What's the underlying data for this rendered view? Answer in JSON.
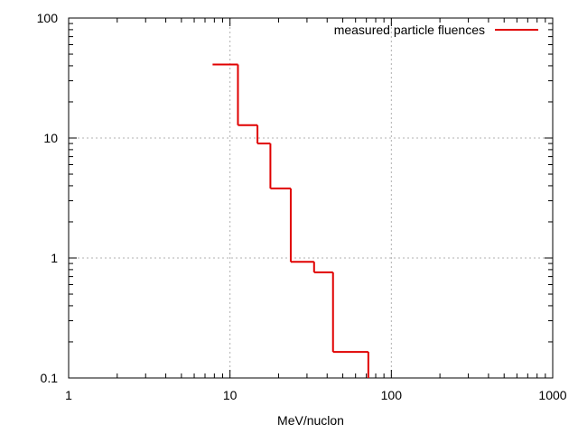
{
  "chart_data": {
    "type": "line",
    "step": true,
    "xlabel": "MeV/nuclon",
    "ylabel": "",
    "x_scale": "log",
    "y_scale": "log",
    "xlim": [
      1,
      1000
    ],
    "ylim": [
      0.1,
      100
    ],
    "x_ticks": [
      "1",
      "10",
      "100",
      "1000"
    ],
    "y_ticks": [
      "0.1",
      "1",
      "10",
      "100"
    ],
    "grid": true,
    "legend_position": "top-right",
    "series": [
      {
        "name": "measured particle fluences",
        "color": "#e00000",
        "steps": [
          {
            "x_start": 7.8,
            "x_end": 11.2,
            "y": 41
          },
          {
            "x_start": 11.2,
            "x_end": 14.8,
            "y": 12.8
          },
          {
            "x_start": 14.8,
            "x_end": 17.8,
            "y": 9.0
          },
          {
            "x_start": 17.8,
            "x_end": 23.8,
            "y": 3.8
          },
          {
            "x_start": 23.8,
            "x_end": 33.2,
            "y": 0.93
          },
          {
            "x_start": 33.2,
            "x_end": 43.5,
            "y": 0.76
          },
          {
            "x_start": 43.5,
            "x_end": 72.0,
            "y": 0.165
          }
        ]
      }
    ]
  }
}
